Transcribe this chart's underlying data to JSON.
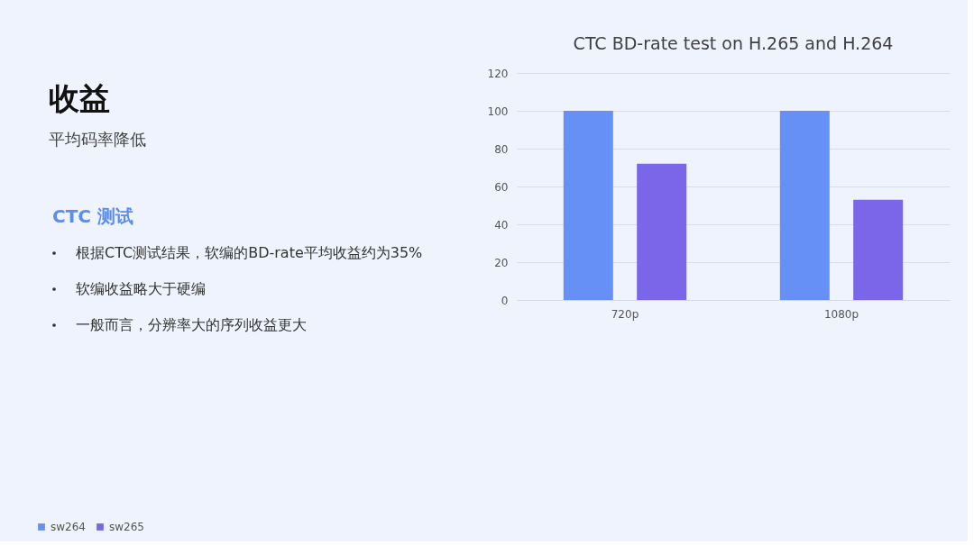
{
  "chart_data": {
    "type": "bar",
    "title": "CTC BD-rate test on H.265 and H.264",
    "categories": [
      "720p",
      "1080p"
    ],
    "series": [
      {
        "name": "sw264",
        "color": "#6690f5",
        "values": [
          100,
          100
        ]
      },
      {
        "name": "sw265",
        "color": "#7b65e8",
        "values": [
          72,
          53
        ]
      }
    ],
    "ylim": [
      0,
      120
    ],
    "yticks": [
      0,
      20,
      40,
      60,
      80,
      100,
      120
    ],
    "grid": "y",
    "legend": "bottom",
    "annotations": [
      "收益",
      "平均码率降低",
      "CTC 测试",
      "根据CTC测试结果，软编的BD-rate平均收益约为35%",
      "软编收益略大于硬编",
      "一般而言，分辨率大的序列收益更大"
    ]
  }
}
